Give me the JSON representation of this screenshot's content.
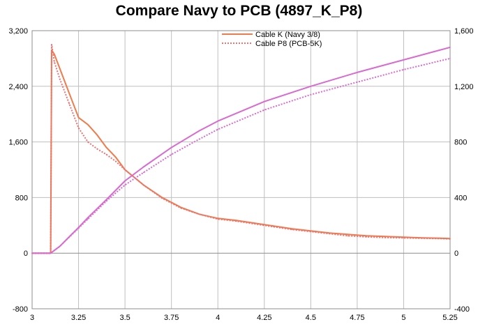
{
  "chart_data": {
    "type": "line",
    "title": "Compare Navy to PCB (4897_K_P8)",
    "xlabel": "",
    "ylabel": "",
    "y2label": "",
    "xlim": [
      3,
      5.25
    ],
    "ylim": [
      -800,
      3200
    ],
    "y2lim": [
      -400,
      1600
    ],
    "x_ticks": [
      "3",
      "3.25",
      "3.5",
      "3.75",
      "4",
      "4.25",
      "4.5",
      "4.75",
      "5",
      "5.25"
    ],
    "y_ticks": [
      "-800",
      "0",
      "800",
      "1,600",
      "2,400",
      "3,200"
    ],
    "y2_ticks": [
      "-400",
      "0",
      "400",
      "800",
      "1,200",
      "1,600"
    ],
    "grid": true,
    "legend_position": "top",
    "series": [
      {
        "name": "Cable K (Navy 3/8)",
        "axis": "left",
        "color": "#f07a4a",
        "dash": "solid",
        "x": [
          3.0,
          3.09,
          3.1,
          3.105,
          3.12,
          3.15,
          3.2,
          3.25,
          3.3,
          3.35,
          3.4,
          3.45,
          3.5,
          3.6,
          3.7,
          3.8,
          3.9,
          4.0,
          4.1,
          4.2,
          4.3,
          4.4,
          4.5,
          4.6,
          4.7,
          4.8,
          4.9,
          5.0,
          5.1,
          5.2,
          5.25
        ],
        "y": [
          0,
          0,
          0,
          2920,
          2860,
          2650,
          2300,
          1950,
          1850,
          1700,
          1520,
          1380,
          1200,
          980,
          800,
          660,
          560,
          500,
          470,
          430,
          390,
          350,
          320,
          290,
          270,
          250,
          240,
          230,
          220,
          215,
          210
        ]
      },
      {
        "name": "Cable P8 (PCB-5K)",
        "axis": "left",
        "color": "#f07070",
        "dash": "dotted",
        "x": [
          3.0,
          3.09,
          3.1,
          3.105,
          3.12,
          3.15,
          3.2,
          3.25,
          3.3,
          3.35,
          3.4,
          3.45,
          3.5,
          3.6,
          3.7,
          3.8,
          3.9,
          4.0,
          4.1,
          4.2,
          4.3,
          4.4,
          4.5,
          4.6,
          4.7,
          4.8,
          4.9,
          5.0,
          5.1,
          5.2,
          5.25
        ],
        "y": [
          0,
          0,
          0,
          3000,
          2750,
          2500,
          2150,
          1800,
          1600,
          1500,
          1420,
          1320,
          1200,
          980,
          790,
          650,
          560,
          490,
          460,
          420,
          380,
          340,
          310,
          280,
          250,
          235,
          225,
          220,
          215,
          210,
          205
        ]
      },
      {
        "name": "",
        "axis": "right",
        "color": "#d96ad0",
        "dash": "solid",
        "x": [
          3.0,
          3.1,
          3.15,
          3.2,
          3.25,
          3.3,
          3.4,
          3.5,
          3.6,
          3.75,
          3.9,
          4.0,
          4.25,
          4.5,
          4.75,
          5.0,
          5.25
        ],
        "y": [
          0,
          0,
          50,
          118,
          185,
          255,
          385,
          520,
          620,
          760,
          880,
          950,
          1090,
          1200,
          1300,
          1390,
          1480
        ]
      },
      {
        "name": "",
        "axis": "right",
        "color": "#d96ad0",
        "dash": "dotted",
        "x": [
          3.0,
          3.1,
          3.15,
          3.2,
          3.25,
          3.3,
          3.4,
          3.5,
          3.6,
          3.75,
          3.9,
          4.0,
          4.25,
          4.5,
          4.75,
          5.0,
          5.25
        ],
        "y": [
          0,
          0,
          50,
          115,
          180,
          245,
          375,
          490,
          580,
          710,
          820,
          890,
          1030,
          1140,
          1230,
          1320,
          1400
        ]
      }
    ]
  }
}
